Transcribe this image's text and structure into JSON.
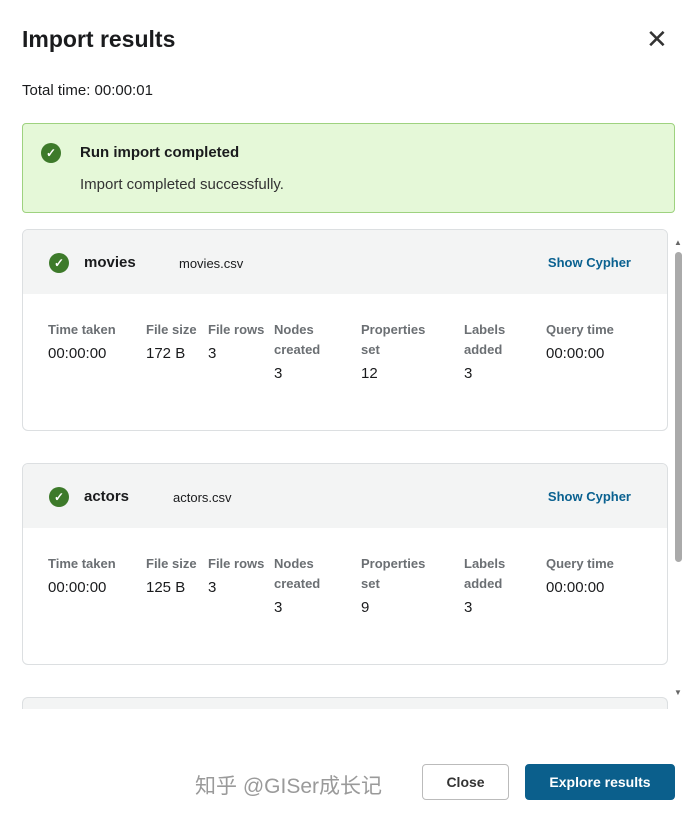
{
  "dialog": {
    "title": "Import results",
    "close_icon": "close-icon",
    "total_time": "Total time: 00:00:01"
  },
  "alert": {
    "heading": "Run import completed",
    "message": "Import completed successfully.",
    "color": "#e5f8d8"
  },
  "stat_labels": {
    "time": "Time taken",
    "size": "File size",
    "rows": "File rows",
    "nodes": "Nodes created",
    "props": "Properties set",
    "labels": "Labels added",
    "query": "Query time"
  },
  "cards": [
    {
      "name": "movies",
      "file": "movies.csv",
      "show_cypher": "Show Cypher",
      "time": "00:00:00",
      "size": "172 B",
      "rows": "3",
      "nodes": "3",
      "props": "12",
      "labels": "3",
      "query": "00:00:00"
    },
    {
      "name": "actors",
      "file": "actors.csv",
      "show_cypher": "Show Cypher",
      "time": "00:00:00",
      "size": "125 B",
      "rows": "3",
      "nodes": "3",
      "props": "9",
      "labels": "3",
      "query": "00:00:00"
    }
  ],
  "footer": {
    "close": "Close",
    "explore": "Explore results"
  },
  "watermark": "知乎 @GISer成长记"
}
